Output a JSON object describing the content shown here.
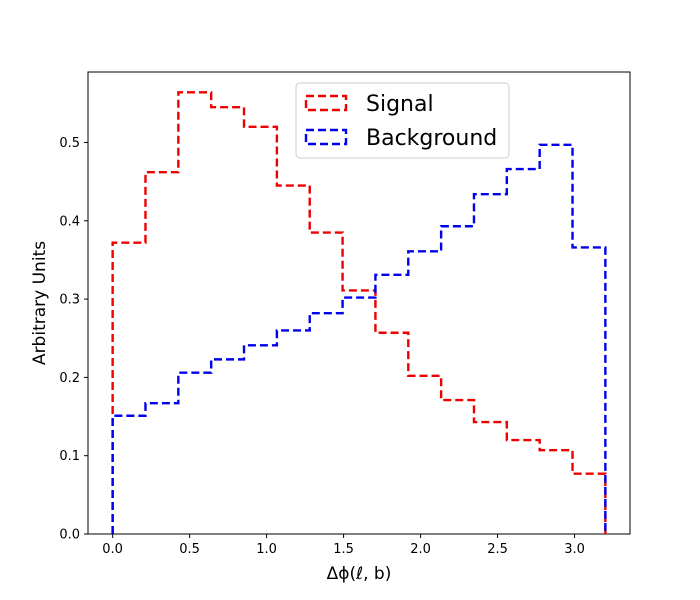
{
  "chart_data": {
    "type": "histogram",
    "xlabel": "Δϕ(ℓ, b)",
    "ylabel": "Arbitrary Units",
    "xlim": [
      -0.16,
      3.36
    ],
    "ylim": [
      0,
      0.59
    ],
    "xticks": [
      0.0,
      0.5,
      1.0,
      1.5,
      2.0,
      2.5,
      3.0
    ],
    "xtick_labels": [
      "0.0",
      "0.5",
      "1.0",
      "1.5",
      "2.0",
      "2.5",
      "3.0"
    ],
    "yticks": [
      0.0,
      0.1,
      0.2,
      0.3,
      0.4,
      0.5
    ],
    "ytick_labels": [
      "0.0",
      "0.1",
      "0.2",
      "0.3",
      "0.4",
      "0.5"
    ],
    "bin_edges": [
      0.0,
      0.2133,
      0.4267,
      0.64,
      0.8533,
      1.0667,
      1.28,
      1.4933,
      1.7067,
      1.92,
      2.1333,
      2.3467,
      2.56,
      2.7733,
      2.9867,
      3.2
    ],
    "grid": false,
    "legend_position": "top-center",
    "series": [
      {
        "name": "Signal",
        "color": "#ee0000",
        "linestyle": "dashed",
        "values": [
          0.372,
          0.462,
          0.564,
          0.545,
          0.52,
          0.445,
          0.385,
          0.311,
          0.257,
          0.202,
          0.171,
          0.143,
          0.12,
          0.107,
          0.077
        ]
      },
      {
        "name": "Background",
        "color": "#0000ee",
        "linestyle": "dashed",
        "values": [
          0.151,
          0.167,
          0.206,
          0.223,
          0.241,
          0.26,
          0.282,
          0.302,
          0.331,
          0.361,
          0.393,
          0.434,
          0.466,
          0.497,
          0.366
        ]
      }
    ]
  }
}
